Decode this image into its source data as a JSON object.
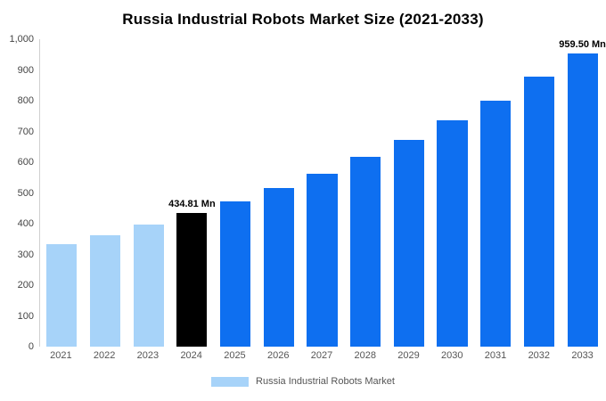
{
  "title": "Russia Industrial Robots Market Size (2021-2033)",
  "legend": {
    "label": "Russia Industrial Robots Market",
    "swatch_color": "#A7D3F9"
  },
  "colors": {
    "historical": "#A7D3F9",
    "base": "#000000",
    "forecast": "#0E6FF0",
    "axis_text": "#555555"
  },
  "y_axis": {
    "ticks": [
      "1,000",
      "900",
      "800",
      "700",
      "600",
      "500",
      "400",
      "300",
      "200",
      "100",
      "0"
    ],
    "min": 0,
    "max": 1000
  },
  "chart_data": {
    "type": "bar",
    "title": "Russia Industrial Robots Market Size (2021-2033)",
    "xlabel": "",
    "ylabel": "",
    "ylim": [
      0,
      1000
    ],
    "grid": false,
    "legend_position": "bottom",
    "categories": [
      "2021",
      "2022",
      "2023",
      "2024",
      "2025",
      "2026",
      "2027",
      "2028",
      "2029",
      "2030",
      "2031",
      "2032",
      "2033"
    ],
    "values": [
      333,
      362,
      397,
      434.81,
      472,
      516,
      563,
      617,
      673,
      735,
      801,
      877,
      959.5
    ],
    "roles": [
      "historical",
      "historical",
      "historical",
      "base",
      "forecast",
      "forecast",
      "forecast",
      "forecast",
      "forecast",
      "forecast",
      "forecast",
      "forecast",
      "forecast"
    ],
    "annotations": [
      {
        "year": "2024",
        "label": "434.81 Mn"
      },
      {
        "year": "2033",
        "label": "959.50 Mn"
      }
    ],
    "series_name": "Russia Industrial Robots Market"
  }
}
